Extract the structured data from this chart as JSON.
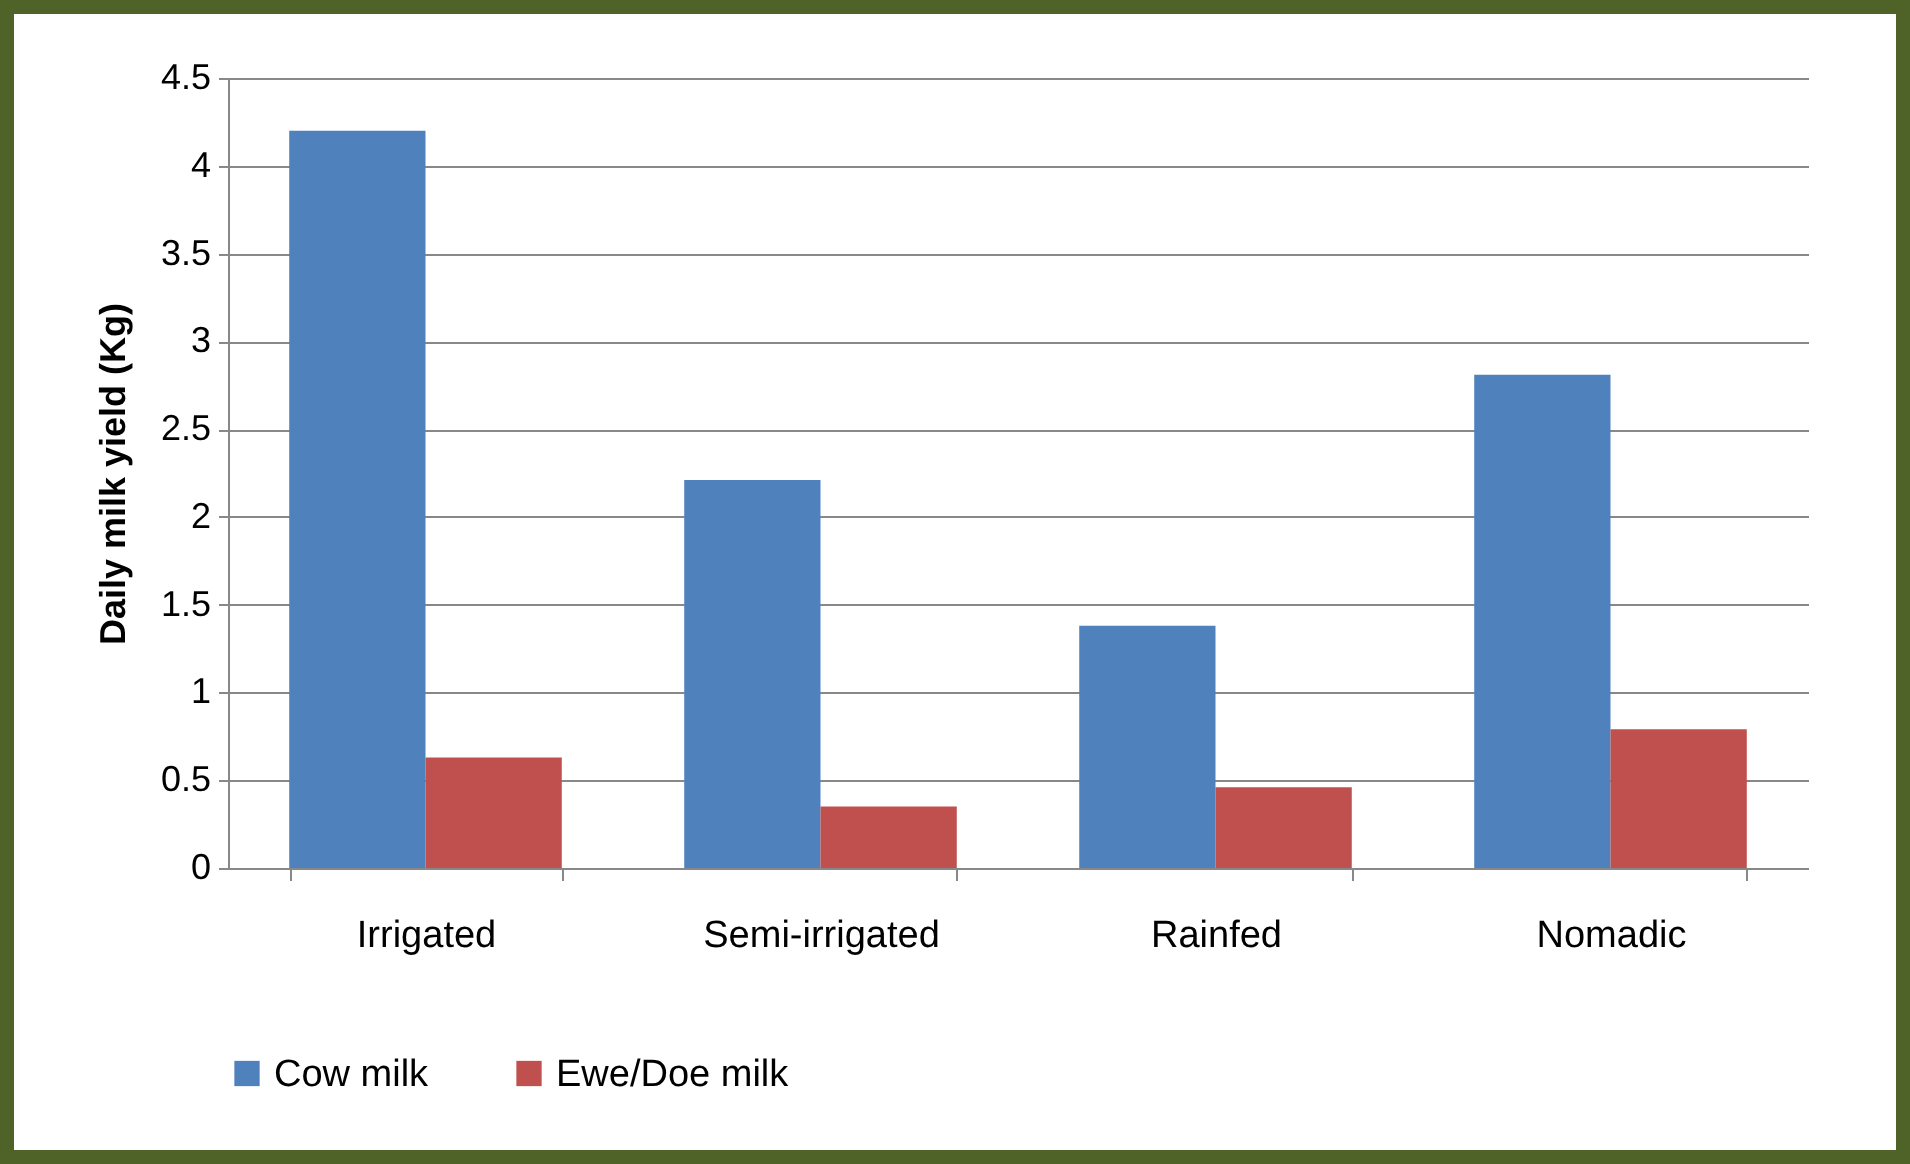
{
  "chart_data": {
    "type": "bar",
    "ylabel": "Daily milk yield  (Kg)",
    "categories": [
      "Irrigated",
      "Semi-irrigated",
      "Rainfed",
      "Nomadic"
    ],
    "series": [
      {
        "name": "Cow milk",
        "color": "#4f81bd",
        "values": [
          4.2,
          2.21,
          1.38,
          2.81
        ]
      },
      {
        "name": "Ewe/Doe milk",
        "color": "#c0504d",
        "values": [
          0.63,
          0.35,
          0.46,
          0.79
        ]
      }
    ],
    "ylim": [
      0,
      4.5
    ],
    "yticks": [
      0,
      0.5,
      1,
      1.5,
      2,
      2.5,
      3,
      3.5,
      4,
      4.5
    ],
    "grid": "y",
    "legend": "bottom"
  }
}
